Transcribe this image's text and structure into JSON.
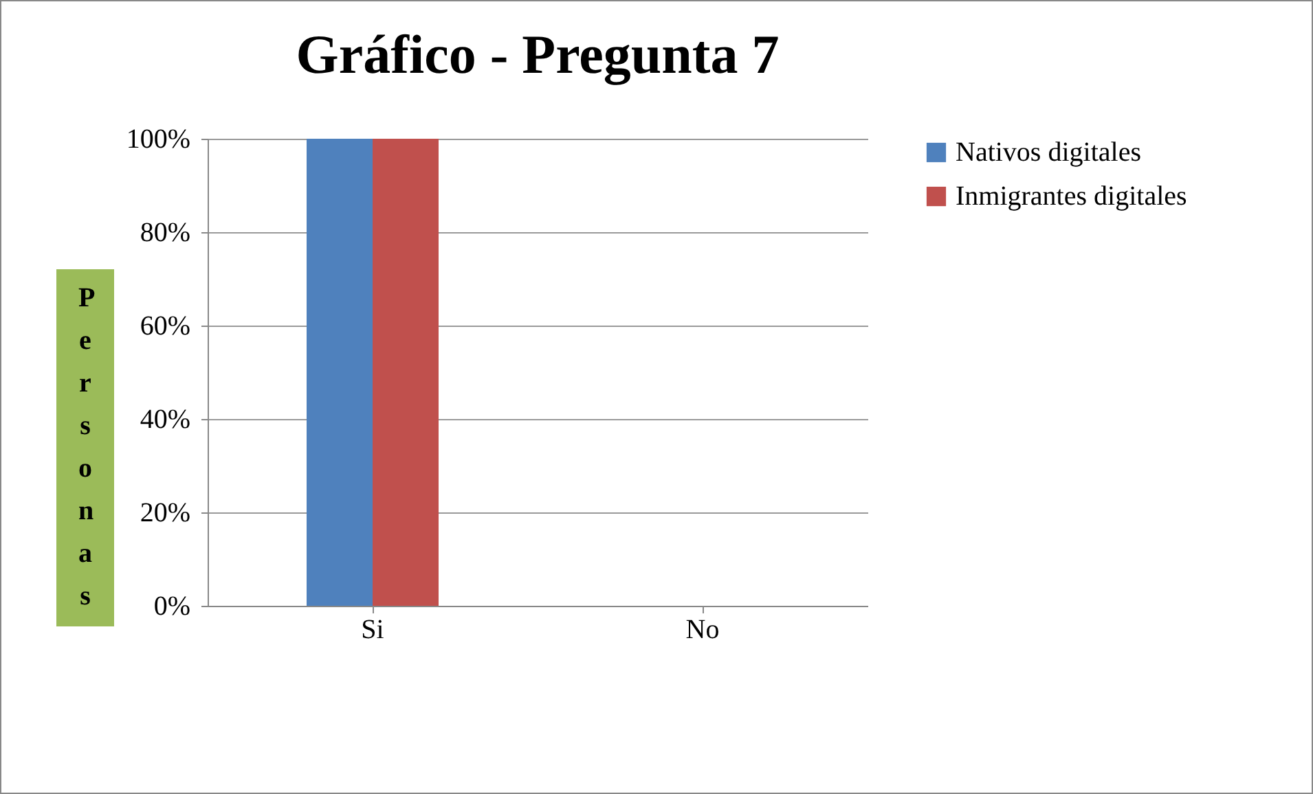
{
  "chart_data": {
    "type": "bar",
    "title": "Gráfico - Pregunta 7",
    "ylabel": "Personas",
    "categories": [
      "Si",
      "No"
    ],
    "series": [
      {
        "name": "Nativos digitales",
        "color": "#4f81bd",
        "values": [
          100,
          0
        ]
      },
      {
        "name": "Inmigrantes digitales",
        "color": "#c0504d",
        "values": [
          100,
          0
        ]
      }
    ],
    "ylim": [
      0,
      100
    ],
    "yticks": [
      {
        "value": 0,
        "label": "0%"
      },
      {
        "value": 20,
        "label": "20%"
      },
      {
        "value": 40,
        "label": "40%"
      },
      {
        "value": 60,
        "label": "60%"
      },
      {
        "value": 80,
        "label": "80%"
      },
      {
        "value": 100,
        "label": "100%"
      }
    ],
    "grid": "y",
    "legend": "right"
  }
}
